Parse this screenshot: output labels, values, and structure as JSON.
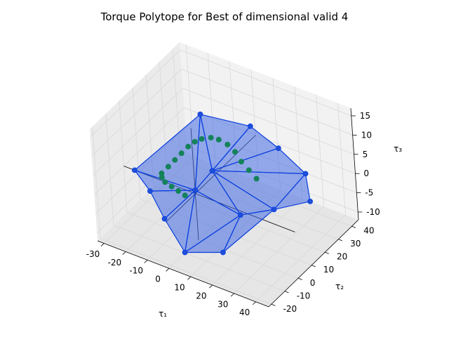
{
  "chart_data": {
    "type": "scatter3d",
    "title": "Torque Polytope for Best of dimensional valid 4",
    "xlabel": "τ₁",
    "ylabel": "τ₂",
    "zlabel": "τ₃",
    "xlim": [
      -33,
      46
    ],
    "ylim": [
      -22,
      45
    ],
    "zlim": [
      -12,
      17
    ],
    "x_ticks": [
      -30,
      -20,
      -10,
      0,
      10,
      20,
      30,
      40
    ],
    "y_ticks": [
      -20,
      -10,
      0,
      10,
      20,
      30,
      40
    ],
    "z_ticks": [
      -10,
      -5,
      0,
      5,
      10,
      15
    ],
    "grid": true,
    "colors": {
      "polytope_fill": "#4169e1",
      "polytope_edge": "#0a3ee0",
      "vertex": "#1f4fd8",
      "trajectory": "#15825a",
      "pane_light": "#f2f2f2",
      "pane_mid": "#ebebeb",
      "pane_dark": "#e6e6e6"
    },
    "vertices": [
      {
        "x": -28,
        "y": 0,
        "z": 0
      },
      {
        "x": -10,
        "y": 22,
        "z": 11
      },
      {
        "x": 12,
        "y": 24,
        "z": 12
      },
      {
        "x": 26,
        "y": 22,
        "z": 10
      },
      {
        "x": 38,
        "y": 22,
        "z": 6
      },
      {
        "x": 42,
        "y": 18,
        "z": 1
      },
      {
        "x": 30,
        "y": 10,
        "z": -1
      },
      {
        "x": 18,
        "y": -10,
        "z": -8
      },
      {
        "x": 4,
        "y": -16,
        "z": -9
      },
      {
        "x": -10,
        "y": -8,
        "z": -6
      },
      {
        "x": -20,
        "y": -2,
        "z": -3
      },
      {
        "x": 2,
        "y": 10,
        "z": 3
      },
      {
        "x": -4,
        "y": 6,
        "z": -2
      },
      {
        "x": 18,
        "y": 4,
        "z": -3
      }
    ],
    "faces": [
      [
        0,
        1,
        12
      ],
      [
        1,
        2,
        11
      ],
      [
        1,
        11,
        12
      ],
      [
        2,
        3,
        11
      ],
      [
        3,
        4,
        11
      ],
      [
        4,
        5,
        6
      ],
      [
        4,
        6,
        11
      ],
      [
        6,
        13,
        11
      ],
      [
        6,
        7,
        13
      ],
      [
        7,
        8,
        13
      ],
      [
        8,
        9,
        12
      ],
      [
        9,
        10,
        12
      ],
      [
        10,
        0,
        12
      ],
      [
        12,
        11,
        13
      ],
      [
        8,
        12,
        13
      ]
    ],
    "trajectory": [
      {
        "x": -18,
        "y": 4,
        "z": 0
      },
      {
        "x": -16,
        "y": 6,
        "z": 1.5
      },
      {
        "x": -14,
        "y": 8,
        "z": 3
      },
      {
        "x": -12,
        "y": 10,
        "z": 4.5
      },
      {
        "x": -10,
        "y": 12,
        "z": 6
      },
      {
        "x": -8,
        "y": 14,
        "z": 7
      },
      {
        "x": -6,
        "y": 16,
        "z": 7.5
      },
      {
        "x": -3,
        "y": 18,
        "z": 7.8
      },
      {
        "x": 0,
        "y": 19,
        "z": 7.6
      },
      {
        "x": 4,
        "y": 19,
        "z": 7.2
      },
      {
        "x": 8,
        "y": 18,
        "z": 6.5
      },
      {
        "x": 12,
        "y": 16,
        "z": 5.5
      },
      {
        "x": 16,
        "y": 15,
        "z": 4.5
      },
      {
        "x": 20,
        "y": 14,
        "z": 3.5
      },
      {
        "x": -18,
        "y": 4,
        "z": -1
      },
      {
        "x": -16,
        "y": 3,
        "z": -1.5
      },
      {
        "x": -13,
        "y": 3,
        "z": -2
      },
      {
        "x": -10,
        "y": 3,
        "z": -2.5
      },
      {
        "x": -7,
        "y": 3,
        "z": -3
      }
    ]
  }
}
